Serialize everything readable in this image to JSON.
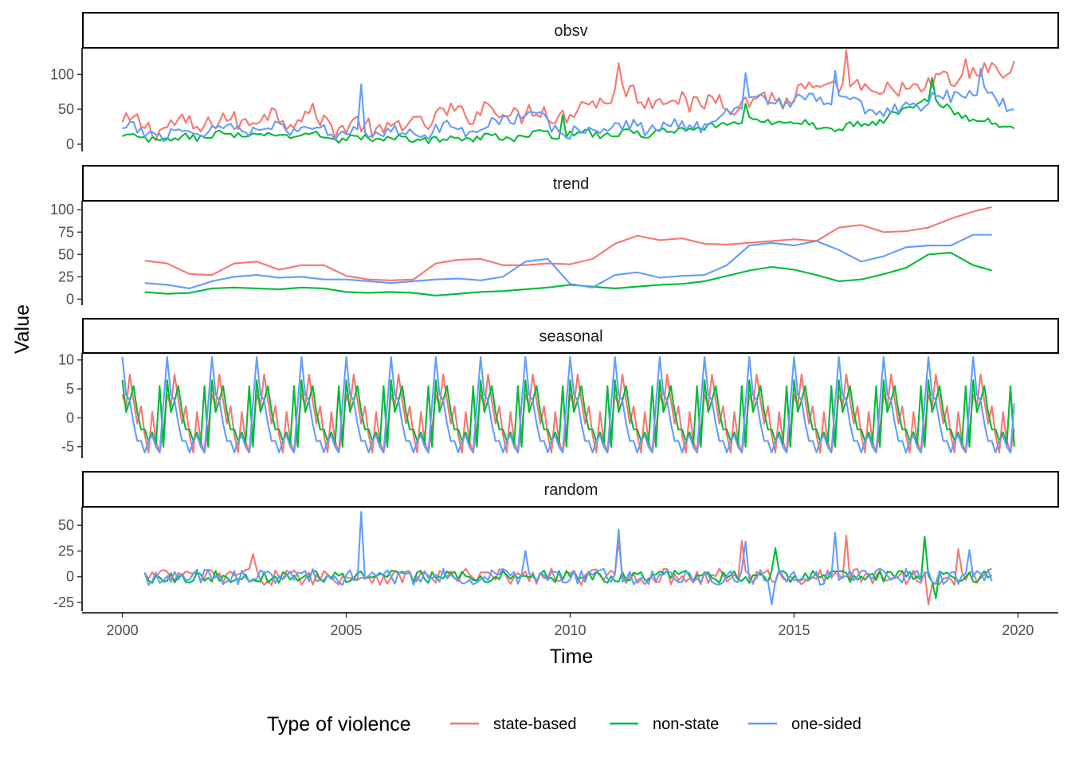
{
  "chart_data": {
    "type": "line",
    "xlabel": "Time",
    "ylabel": "Value",
    "xlim": [
      1999.1,
      2020.9
    ],
    "x_ticks": [
      2000,
      2005,
      2010,
      2015,
      2020
    ],
    "legend": {
      "title": "Type of violence",
      "placement": "bottom",
      "entries": [
        "state-based",
        "non-state",
        "one-sided"
      ]
    },
    "colors": {
      "state-based": "#F8766D",
      "non-state": "#00BA38",
      "one-sided": "#619CFF"
    },
    "facets": [
      {
        "strip": "obsv",
        "ylim": [
          -8,
          138
        ],
        "y_ticks": [
          0,
          50,
          100
        ],
        "series": [
          {
            "name": "state-based",
            "x_start": 2000,
            "x_end": 2019.92,
            "points": [
              [
                2000,
                28
              ],
              [
                2001,
                25
              ],
              [
                2002,
                30
              ],
              [
                2003,
                38
              ],
              [
                2004,
                42
              ],
              [
                2005,
                25
              ],
              [
                2006,
                22
              ],
              [
                2007,
                38
              ],
              [
                2008,
                50
              ],
              [
                2009,
                45
              ],
              [
                2010,
                45
              ],
              [
                2011,
                75
              ],
              [
                2012,
                65
              ],
              [
                2013,
                60
              ],
              [
                2014,
                62
              ],
              [
                2015,
                68
              ],
              [
                2016,
                85
              ],
              [
                2017,
                72
              ],
              [
                2018,
                85
              ],
              [
                2019,
                98
              ],
              [
                2020,
                112
              ]
            ],
            "amp": 14,
            "spikes": [
              [
                2011.1,
                116
              ],
              [
                2016.15,
                135
              ],
              [
                2018.8,
                122
              ]
            ]
          },
          {
            "name": "non-state",
            "x_start": 2000,
            "x_end": 2019.92,
            "points": [
              [
                2000,
                10
              ],
              [
                2001,
                6
              ],
              [
                2002,
                14
              ],
              [
                2003,
                12
              ],
              [
                2004,
                14
              ],
              [
                2005,
                8
              ],
              [
                2006,
                8
              ],
              [
                2007,
                7
              ],
              [
                2008,
                9
              ],
              [
                2009,
                12
              ],
              [
                2010,
                16
              ],
              [
                2011,
                14
              ],
              [
                2012,
                17
              ],
              [
                2013,
                22
              ],
              [
                2014,
                35
              ],
              [
                2015,
                30
              ],
              [
                2016,
                22
              ],
              [
                2017,
                35
              ],
              [
                2018,
                65
              ],
              [
                2019,
                35
              ],
              [
                2020,
                22
              ]
            ],
            "amp": 5,
            "spikes": [
              [
                2009.8,
                42
              ],
              [
                2013.9,
                58
              ],
              [
                2018.1,
                95
              ]
            ]
          },
          {
            "name": "one-sided",
            "x_start": 2000,
            "x_end": 2019.92,
            "points": [
              [
                2000,
                20
              ],
              [
                2001,
                15
              ],
              [
                2002,
                22
              ],
              [
                2003,
                25
              ],
              [
                2004,
                22
              ],
              [
                2005,
                18
              ],
              [
                2006,
                18
              ],
              [
                2007,
                20
              ],
              [
                2008,
                25
              ],
              [
                2009,
                45
              ],
              [
                2010,
                15
              ],
              [
                2011,
                25
              ],
              [
                2012,
                25
              ],
              [
                2013,
                28
              ],
              [
                2014,
                65
              ],
              [
                2015,
                60
              ],
              [
                2016,
                65
              ],
              [
                2017,
                40
              ],
              [
                2018,
                62
              ],
              [
                2019,
                75
              ],
              [
                2020,
                55
              ]
            ],
            "amp": 9,
            "spikes": [
              [
                2005.3,
                86
              ],
              [
                2013.9,
                102
              ],
              [
                2015.9,
                105
              ],
              [
                2019.15,
                108
              ]
            ]
          }
        ]
      },
      {
        "strip": "trend",
        "ylim": [
          -5,
          110
        ],
        "y_ticks": [
          0,
          25,
          50,
          75,
          100
        ],
        "series": [
          {
            "name": "state-based",
            "x_start": 2000.5,
            "x_end": 2019.42,
            "points": [
              [
                2000.5,
                43
              ],
              [
                2001,
                40
              ],
              [
                2001.5,
                28
              ],
              [
                2002,
                27
              ],
              [
                2002.5,
                40
              ],
              [
                2003,
                42
              ],
              [
                2003.5,
                33
              ],
              [
                2004,
                38
              ],
              [
                2004.5,
                38
              ],
              [
                2005,
                26
              ],
              [
                2005.5,
                22
              ],
              [
                2006,
                21
              ],
              [
                2006.5,
                22
              ],
              [
                2007,
                40
              ],
              [
                2007.5,
                44
              ],
              [
                2008,
                45
              ],
              [
                2008.5,
                38
              ],
              [
                2009,
                38
              ],
              [
                2009.5,
                40
              ],
              [
                2010,
                39
              ],
              [
                2010.5,
                45
              ],
              [
                2011,
                62
              ],
              [
                2011.5,
                71
              ],
              [
                2012,
                66
              ],
              [
                2012.5,
                68
              ],
              [
                2013,
                62
              ],
              [
                2013.5,
                61
              ],
              [
                2014,
                63
              ],
              [
                2014.5,
                65
              ],
              [
                2015,
                67
              ],
              [
                2015.5,
                65
              ],
              [
                2016,
                80
              ],
              [
                2016.5,
                83
              ],
              [
                2017,
                75
              ],
              [
                2017.5,
                76
              ],
              [
                2018,
                80
              ],
              [
                2018.5,
                90
              ],
              [
                2019,
                98
              ],
              [
                2019.42,
                103
              ]
            ]
          },
          {
            "name": "non-state",
            "x_start": 2000.5,
            "x_end": 2019.42,
            "points": [
              [
                2000.5,
                8
              ],
              [
                2001,
                6
              ],
              [
                2001.5,
                7
              ],
              [
                2002,
                12
              ],
              [
                2002.5,
                13
              ],
              [
                2003,
                12
              ],
              [
                2003.5,
                11
              ],
              [
                2004,
                13
              ],
              [
                2004.5,
                12
              ],
              [
                2005,
                8
              ],
              [
                2005.5,
                7
              ],
              [
                2006,
                8
              ],
              [
                2006.5,
                7
              ],
              [
                2007,
                4
              ],
              [
                2007.5,
                6
              ],
              [
                2008,
                8
              ],
              [
                2008.5,
                9
              ],
              [
                2009,
                11
              ],
              [
                2009.5,
                13
              ],
              [
                2010,
                16
              ],
              [
                2010.5,
                14
              ],
              [
                2011,
                12
              ],
              [
                2011.5,
                14
              ],
              [
                2012,
                16
              ],
              [
                2012.5,
                17
              ],
              [
                2013,
                20
              ],
              [
                2013.5,
                26
              ],
              [
                2014,
                32
              ],
              [
                2014.5,
                36
              ],
              [
                2015,
                33
              ],
              [
                2015.5,
                27
              ],
              [
                2016,
                20
              ],
              [
                2016.5,
                22
              ],
              [
                2017,
                28
              ],
              [
                2017.5,
                35
              ],
              [
                2018,
                50
              ],
              [
                2018.5,
                52
              ],
              [
                2019,
                38
              ],
              [
                2019.42,
                32
              ]
            ]
          },
          {
            "name": "one-sided",
            "x_start": 2000.5,
            "x_end": 2019.42,
            "points": [
              [
                2000.5,
                18
              ],
              [
                2001,
                16
              ],
              [
                2001.5,
                12
              ],
              [
                2002,
                20
              ],
              [
                2002.5,
                25
              ],
              [
                2003,
                27
              ],
              [
                2003.5,
                24
              ],
              [
                2004,
                25
              ],
              [
                2004.5,
                22
              ],
              [
                2005,
                22
              ],
              [
                2005.5,
                20
              ],
              [
                2006,
                18
              ],
              [
                2006.5,
                20
              ],
              [
                2007,
                22
              ],
              [
                2007.5,
                23
              ],
              [
                2008,
                21
              ],
              [
                2008.5,
                25
              ],
              [
                2009,
                42
              ],
              [
                2009.5,
                45
              ],
              [
                2010,
                17
              ],
              [
                2010.5,
                13
              ],
              [
                2011,
                27
              ],
              [
                2011.5,
                30
              ],
              [
                2012,
                24
              ],
              [
                2012.5,
                26
              ],
              [
                2013,
                27
              ],
              [
                2013.5,
                38
              ],
              [
                2014,
                60
              ],
              [
                2014.5,
                63
              ],
              [
                2015,
                60
              ],
              [
                2015.5,
                65
              ],
              [
                2016,
                55
              ],
              [
                2016.5,
                42
              ],
              [
                2017,
                48
              ],
              [
                2017.5,
                58
              ],
              [
                2018,
                60
              ],
              [
                2018.5,
                60
              ],
              [
                2019,
                72
              ],
              [
                2019.42,
                72
              ]
            ]
          }
        ]
      },
      {
        "strip": "seasonal",
        "ylim": [
          -6.7,
          11.2
        ],
        "y_ticks": [
          -5,
          0,
          5,
          10
        ],
        "series": [
          {
            "name": "state-based",
            "x_start": 2000,
            "x_end": 2019.92,
            "monthly": [
              4,
              2,
              7.5,
              3,
              -1,
              2,
              -3,
              -6,
              1,
              -4,
              -6,
              -2
            ]
          },
          {
            "name": "non-state",
            "x_start": 2000,
            "x_end": 2019.92,
            "monthly": [
              6.5,
              1,
              3,
              5.5,
              1,
              -2,
              -2,
              -4,
              -2.5,
              -4.5,
              5.5,
              -5
            ]
          },
          {
            "name": "one-sided",
            "x_start": 2000,
            "x_end": 2019.92,
            "monthly": [
              10.5,
              4,
              3,
              -1,
              -4,
              -4,
              -6,
              -4,
              -3,
              -5,
              -6,
              2.5
            ]
          }
        ]
      },
      {
        "strip": "random",
        "ylim": [
          -32,
          68
        ],
        "y_ticks": [
          -25,
          0,
          25,
          50
        ],
        "series": [
          {
            "name": "state-based",
            "x_start": 2000.5,
            "x_end": 2019.42,
            "amp": 8,
            "spikes": [
              [
                2002.9,
                22
              ],
              [
                2011.1,
                35
              ],
              [
                2013.8,
                35
              ],
              [
                2016.2,
                40
              ],
              [
                2018.0,
                -27
              ],
              [
                2018.7,
                27
              ]
            ]
          },
          {
            "name": "non-state",
            "x_start": 2000.5,
            "x_end": 2019.42,
            "amp": 6,
            "spikes": [
              [
                2014.6,
                28
              ],
              [
                2017.9,
                39
              ],
              [
                2018.2,
                -21
              ]
            ]
          },
          {
            "name": "one-sided",
            "x_start": 2000.5,
            "x_end": 2019.42,
            "amp": 8,
            "spikes": [
              [
                2005.3,
                63
              ],
              [
                2009.0,
                25
              ],
              [
                2011.1,
                46
              ],
              [
                2013.9,
                34
              ],
              [
                2014.5,
                -27
              ],
              [
                2015.9,
                43
              ],
              [
                2018.9,
                26
              ]
            ]
          }
        ]
      }
    ]
  }
}
